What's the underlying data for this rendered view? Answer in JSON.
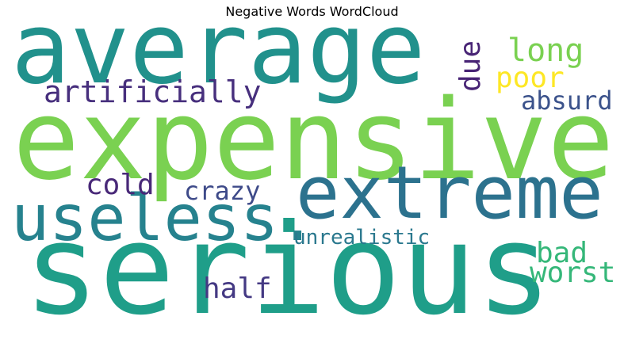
{
  "title": "Negative Words WordCloud",
  "words": [
    {
      "text": "average",
      "color": "#21918c"
    },
    {
      "text": "expensive",
      "color": "#7ad151"
    },
    {
      "text": "serious",
      "color": "#1f9e89"
    },
    {
      "text": "extreme",
      "color": "#2c728e"
    },
    {
      "text": "useless.",
      "color": "#26828e"
    },
    {
      "text": "artificially",
      "color": "#472f7d"
    },
    {
      "text": "long",
      "color": "#7ad151"
    },
    {
      "text": "poor",
      "color": "#fde725"
    },
    {
      "text": "absurd",
      "color": "#3b528b"
    },
    {
      "text": "due",
      "color": "#482475"
    },
    {
      "text": "cold",
      "color": "#482878"
    },
    {
      "text": "crazy",
      "color": "#3e4a89"
    },
    {
      "text": "unrealistic",
      "color": "#2a788e"
    },
    {
      "text": "bad",
      "color": "#35b779"
    },
    {
      "text": "worst",
      "color": "#35b779"
    },
    {
      "text": "half",
      "color": "#443983"
    }
  ]
}
